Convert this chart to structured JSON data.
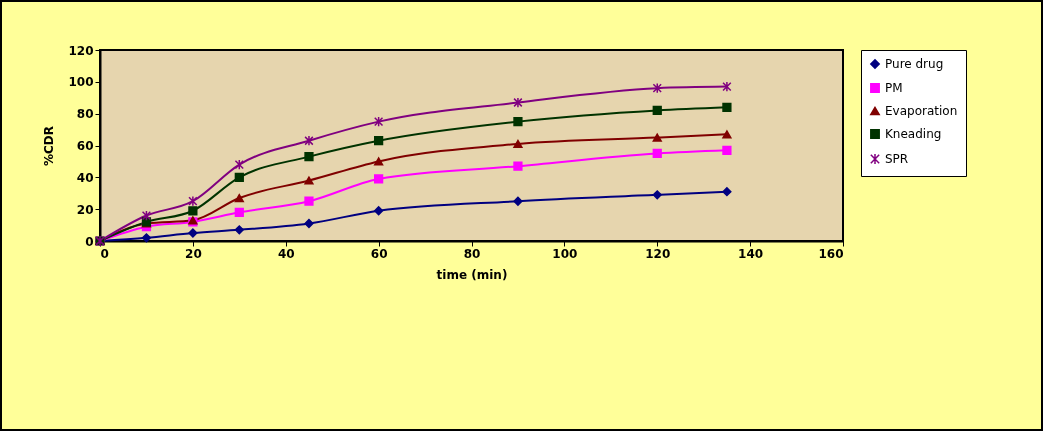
{
  "chart_data": {
    "type": "line",
    "xlabel": "time (min)",
    "ylabel": "%CDR",
    "x": [
      0,
      10,
      20,
      30,
      45,
      60,
      90,
      120,
      135
    ],
    "xlim": [
      0,
      160
    ],
    "xticks": [
      0,
      20,
      40,
      60,
      80,
      100,
      120,
      140,
      160
    ],
    "ylim": [
      0,
      120
    ],
    "yticks": [
      0,
      20,
      40,
      60,
      80,
      100,
      120
    ],
    "grid": false,
    "legend": "right",
    "line_style": "solid",
    "series": [
      {
        "name": "Pure drug",
        "color": "#000080",
        "marker": "diamond",
        "values": [
          0,
          2,
          5,
          7,
          11,
          19,
          25,
          29,
          31
        ]
      },
      {
        "name": "PM",
        "color": "#ff00ff",
        "marker": "square",
        "values": [
          0,
          9,
          12,
          18,
          25,
          39,
          47,
          55,
          57
        ]
      },
      {
        "name": "Evaporation",
        "color": "#800000",
        "marker": "triangle",
        "values": [
          0,
          11,
          13,
          27,
          38,
          50,
          61,
          65,
          67
        ]
      },
      {
        "name": "Kneading",
        "color": "#003300",
        "marker": "square",
        "values": [
          0,
          12,
          19,
          40,
          53,
          63,
          75,
          82,
          84
        ]
      },
      {
        "name": "SPR",
        "color": "#800080",
        "marker": "cross",
        "values": [
          0,
          16,
          25,
          48,
          63,
          75,
          87,
          96,
          97
        ]
      }
    ]
  }
}
